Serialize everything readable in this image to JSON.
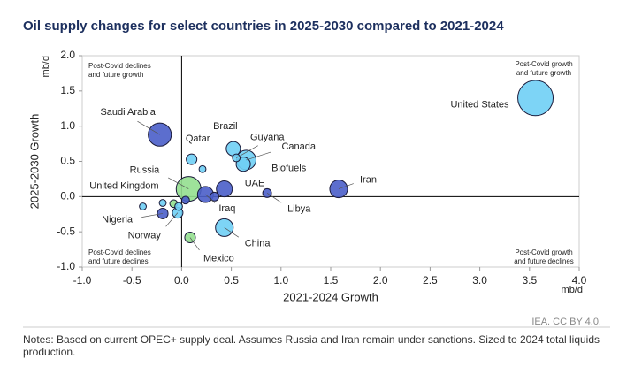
{
  "chart_data": {
    "type": "bubble",
    "title": "Oil supply changes for select countries in 2025-2030 compared to 2021-2024",
    "x_label": "2021-2024 Growth",
    "y_label": "2025-2030 Growth",
    "x_unit": "mb/d",
    "y_unit": "mb/d",
    "xlim": [
      -1,
      4
    ],
    "ylim": [
      -1,
      2
    ],
    "xticks": [
      {
        "value": -1,
        "label": "-1.0"
      },
      {
        "value": -0.5,
        "label": "-0.5"
      },
      {
        "value": 0,
        "label": "0.0"
      },
      {
        "value": 0.5,
        "label": "0.5"
      },
      {
        "value": 1,
        "label": "1.0"
      },
      {
        "value": 1.5,
        "label": "1.5"
      },
      {
        "value": 2,
        "label": "2.0"
      },
      {
        "value": 2.5,
        "label": "2.5"
      },
      {
        "value": 3,
        "label": "3.0"
      },
      {
        "value": 3.5,
        "label": "3.5"
      },
      {
        "value": 4,
        "label": "4.0"
      }
    ],
    "yticks": [
      {
        "value": -1,
        "label": "-1.0"
      },
      {
        "value": -0.5,
        "label": "-0.5"
      },
      {
        "value": 0,
        "label": "0.0"
      },
      {
        "value": 0.5,
        "label": "0.5"
      },
      {
        "value": 1,
        "label": "1.0"
      },
      {
        "value": 1.5,
        "label": "1.5"
      },
      {
        "value": 2,
        "label": "2.0"
      }
    ],
    "points": [
      {
        "label": "United States",
        "x": 3.56,
        "y": 1.4,
        "size": 21,
        "color": "#6fcff5"
      },
      {
        "label": "Saudi Arabia",
        "x": -0.22,
        "y": 0.88,
        "size": 9,
        "color": "#4a5ec9"
      },
      {
        "label": "Qatar",
        "x": 0.1,
        "y": 0.53,
        "size": 1.9,
        "color": "#6fcff5"
      },
      {
        "label": "Brazil",
        "x": 0.52,
        "y": 0.68,
        "size": 3.4,
        "color": "#6fcff5"
      },
      {
        "label": "Guyana",
        "x": 0.55,
        "y": 0.55,
        "size": 1,
        "color": "#6fcff5"
      },
      {
        "label": "Canada",
        "x": 0.65,
        "y": 0.52,
        "size": 6.4,
        "color": "#6fcff5"
      },
      {
        "label": "Biofuels",
        "x": 0.62,
        "y": 0.46,
        "size": 3.4,
        "color": "#6fcff5"
      },
      {
        "label": null,
        "x": 0.21,
        "y": 0.39,
        "size": 0.8,
        "color": "#6fcff5"
      },
      {
        "label": "Russia",
        "x": 0.07,
        "y": 0.11,
        "size": 10.3,
        "color": "#93df8f"
      },
      {
        "label": "UAE",
        "x": 0.43,
        "y": 0.11,
        "size": 4.3,
        "color": "#4a5ec9"
      },
      {
        "label": "Iraq",
        "x": 0.24,
        "y": 0.03,
        "size": 4.3,
        "color": "#4a5ec9"
      },
      {
        "label": null,
        "x": 0.33,
        "y": 0.0,
        "size": 1.3,
        "color": "#4a5ec9"
      },
      {
        "label": "Libya",
        "x": 0.86,
        "y": 0.05,
        "size": 1.3,
        "color": "#4a5ec9"
      },
      {
        "label": "Iran",
        "x": 1.58,
        "y": 0.11,
        "size": 5.3,
        "color": "#4a5ec9"
      },
      {
        "label": "China",
        "x": 0.43,
        "y": -0.44,
        "size": 5.3,
        "color": "#6fcff5"
      },
      {
        "label": "Mexico",
        "x": 0.085,
        "y": -0.58,
        "size": 1.9,
        "color": "#93df8f"
      },
      {
        "label": "United Kingdom",
        "x": -0.39,
        "y": -0.14,
        "size": 0.8,
        "color": "#6fcff5"
      },
      {
        "label": "Nigeria",
        "x": -0.19,
        "y": -0.24,
        "size": 1.9,
        "color": "#4a5ec9"
      },
      {
        "label": "Norway",
        "x": -0.04,
        "y": -0.23,
        "size": 1.9,
        "color": "#6fcff5"
      },
      {
        "label": null,
        "x": -0.19,
        "y": -0.09,
        "size": 0.8,
        "color": "#6fcff5"
      },
      {
        "label": null,
        "x": -0.08,
        "y": -0.1,
        "size": 1,
        "color": "#93df8f"
      },
      {
        "label": null,
        "x": -0.03,
        "y": -0.14,
        "size": 1,
        "color": "#6fcff5"
      },
      {
        "label": null,
        "x": 0.04,
        "y": -0.05,
        "size": 1,
        "color": "#4a5ec9"
      }
    ],
    "annotations": [
      {
        "lines": [
          "Post-Covid declines",
          "and future growth"
        ]
      },
      {
        "lines": [
          "Post-Covid growth",
          "and future growth"
        ]
      },
      {
        "lines": [
          "Post-Covid declines",
          "and future declines"
        ]
      },
      {
        "lines": [
          "Post-Covid growth",
          "and future declines"
        ]
      }
    ],
    "source": "IEA. CC BY 4.0.",
    "notes": "Notes: Based on current OPEC+ supply deal. Assumes Russia and Iran remain under sanctions. Sized to 2024 total liquids production."
  }
}
